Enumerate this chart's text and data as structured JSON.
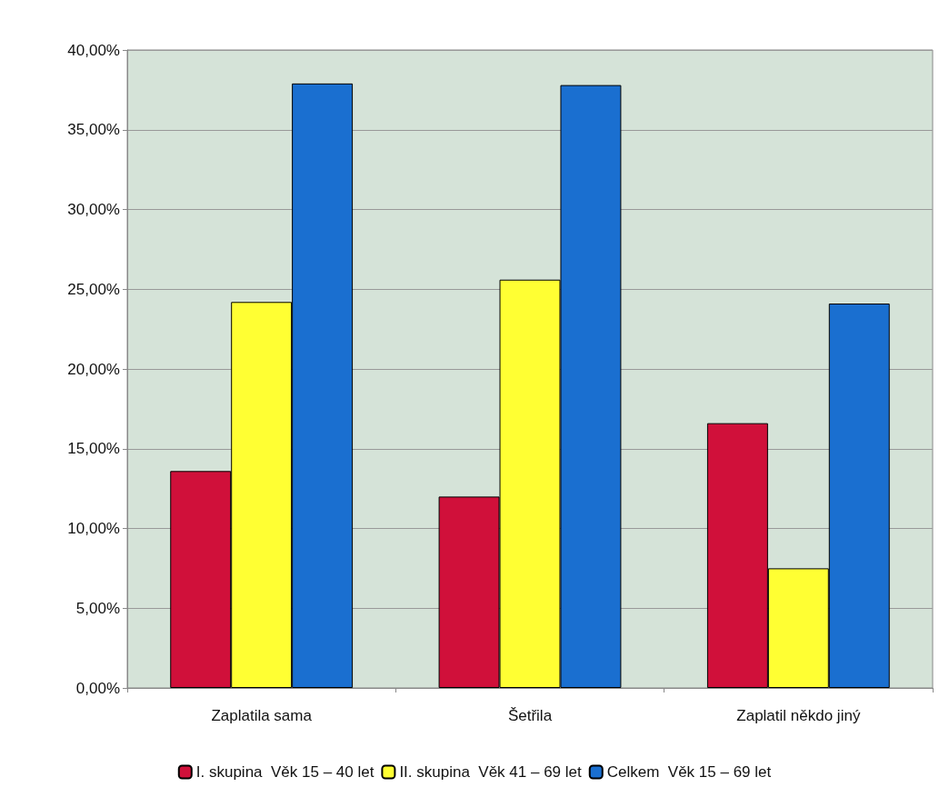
{
  "chart_data": {
    "type": "bar",
    "categories": [
      "Zaplatila sama",
      "Šetřila",
      "Zaplatil někdo jiný"
    ],
    "series": [
      {
        "name": "I. skupina  Věk 15 – 40 let",
        "color": "#d0103a",
        "values": [
          13.6,
          12.0,
          16.6
        ]
      },
      {
        "name": "II. skupina  Věk 41 – 69 let",
        "color": "#ffff33",
        "values": [
          24.2,
          25.6,
          7.5
        ]
      },
      {
        "name": "Celkem  Věk 15 – 69 let",
        "color": "#1a6fd0",
        "values": [
          37.9,
          37.8,
          24.1
        ]
      }
    ],
    "ylim": [
      0,
      40
    ],
    "yticks": [
      {
        "value": 0,
        "label": "0,00%"
      },
      {
        "value": 5,
        "label": "5,00%"
      },
      {
        "value": 10,
        "label": "10,00%"
      },
      {
        "value": 15,
        "label": "15,00%"
      },
      {
        "value": 20,
        "label": "20,00%"
      },
      {
        "value": 25,
        "label": "25,00%"
      },
      {
        "value": 30,
        "label": "30,00%"
      },
      {
        "value": 35,
        "label": "35,00%"
      },
      {
        "value": 40,
        "label": "40,00%"
      }
    ],
    "grid": "y",
    "legend": "bottom"
  }
}
